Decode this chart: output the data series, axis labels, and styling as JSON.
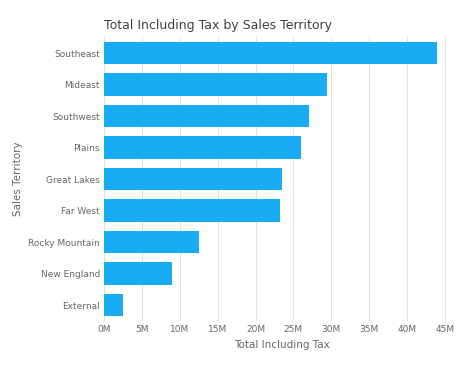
{
  "title": "Total Including Tax by Sales Territory",
  "categories": [
    "Southeast",
    "Mideast",
    "Southwest",
    "Plains",
    "Great Lakes",
    "Far West",
    "Rocky Mountain",
    "New England",
    "External"
  ],
  "values": [
    44000000,
    29500000,
    27000000,
    26000000,
    23500000,
    23200000,
    12500000,
    9000000,
    2500000
  ],
  "bar_color": "#1aabf5",
  "background_color": "#ffffff",
  "plot_background_color": "#ffffff",
  "xlabel": "Total Including Tax",
  "ylabel": "Sales Territory",
  "xlim": [
    0,
    47000000
  ],
  "xticks": [
    0,
    5000000,
    10000000,
    15000000,
    20000000,
    25000000,
    30000000,
    35000000,
    40000000,
    45000000
  ],
  "xtick_labels": [
    "0M",
    "5M",
    "10M",
    "15M",
    "20M",
    "25M",
    "30M",
    "35M",
    "40M",
    "45M"
  ],
  "title_fontsize": 9,
  "axis_label_fontsize": 7.5,
  "tick_fontsize": 6.5,
  "bar_height": 0.72,
  "grid_color": "#e0e0e0",
  "label_color": "#666666",
  "title_color": "#404040"
}
